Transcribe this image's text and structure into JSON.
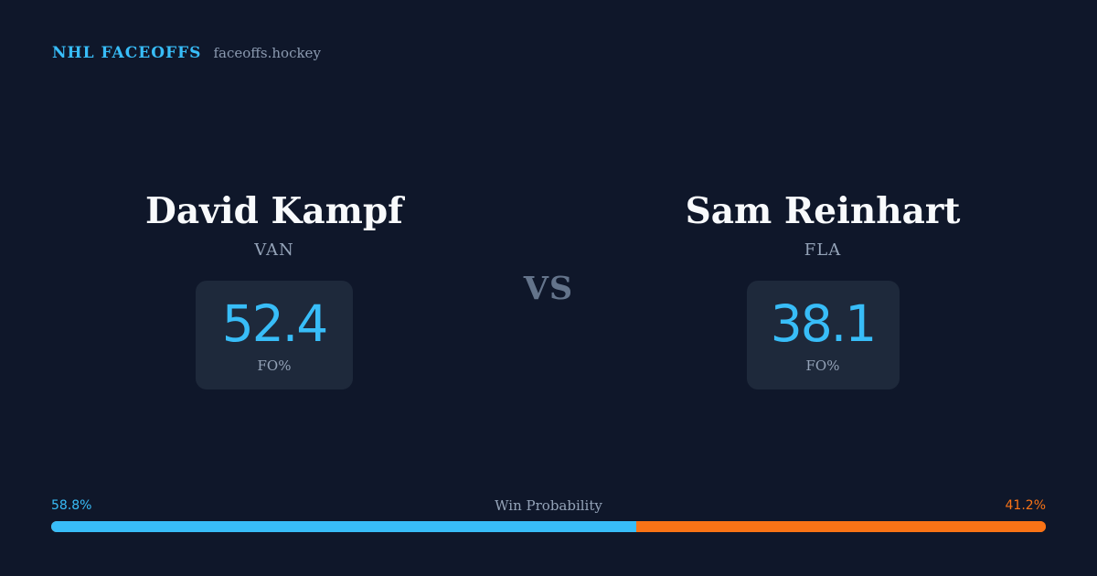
{
  "brand": {
    "title": "NHL FACEOFFS",
    "site": "faceoffs.hockey"
  },
  "player_left": {
    "name": "David Kampf",
    "team": "VAN",
    "stat_value": "52.4",
    "stat_label": "FO%"
  },
  "vs_label": "VS",
  "player_right": {
    "name": "Sam Reinhart",
    "team": "FLA",
    "stat_value": "38.1",
    "stat_label": "FO%"
  },
  "win_probability": {
    "label": "Win Probability",
    "left_text": "58.8%",
    "right_text": "41.2%",
    "left_value": 58.8,
    "right_value": 41.2
  },
  "colors": {
    "background": "#0f172a",
    "accent_blue": "#38bdf8",
    "accent_orange": "#f97316",
    "card": "#1e293b"
  }
}
